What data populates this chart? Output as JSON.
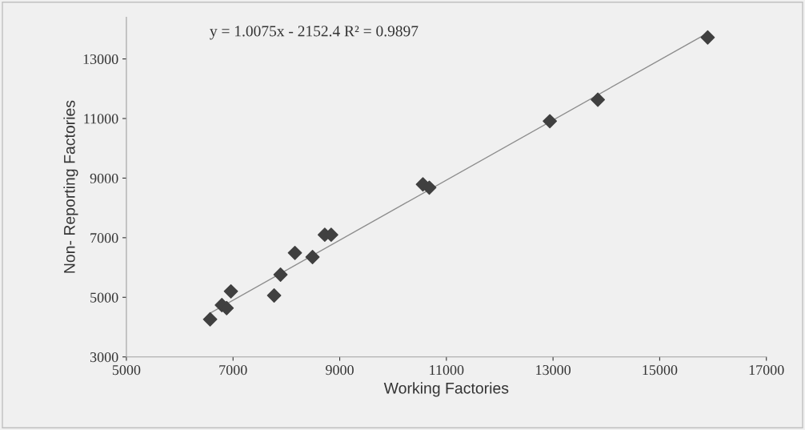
{
  "chart_data": {
    "type": "scatter",
    "xlabel": "Working Factories",
    "ylabel": "Non- Reporting Factories",
    "annotations": [
      "y = 1.0075x - 2152.4 R² = 0.9897"
    ],
    "marker": "diamond",
    "grid": false,
    "legend": false,
    "xlim": [
      5000,
      17000
    ],
    "xticks": [
      5000,
      7000,
      9000,
      11000,
      13000,
      15000,
      17000
    ],
    "ylim": [
      3000,
      14400
    ],
    "yticks": [
      3000,
      5000,
      7000,
      9000,
      11000,
      13000
    ],
    "series": [
      {
        "color": "#404040",
        "x": [
          6570,
          6790,
          6880,
          6960,
          7770,
          7890,
          8160,
          8490,
          8720,
          8840,
          10560,
          10680,
          12940,
          13840,
          15900
        ],
        "values": [
          4260,
          4740,
          4640,
          5200,
          5060,
          5760,
          6490,
          6350,
          7100,
          7100,
          8790,
          8680,
          10910,
          11630,
          13720
        ]
      },
      {
        "type": "line",
        "color": "#8c8c8c",
        "x": [
          6570,
          15900
        ],
        "values": [
          4470,
          13870
        ],
        "marker": "none"
      }
    ]
  }
}
